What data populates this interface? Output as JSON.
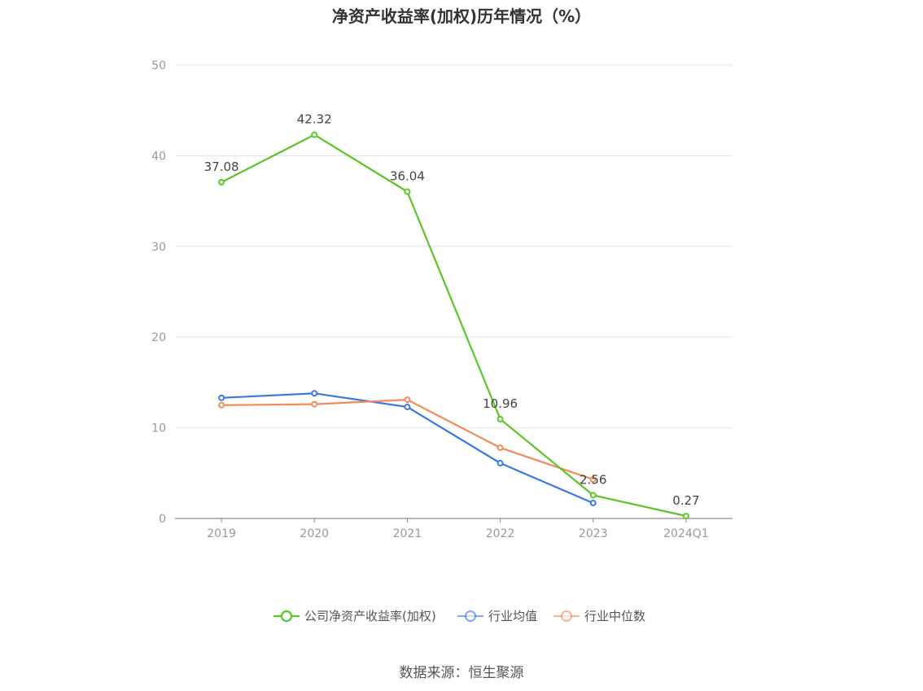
{
  "chart_data": {
    "type": "line",
    "title": "净资产收益率(加权)历年情况（%）",
    "categories": [
      "2019",
      "2020",
      "2021",
      "2022",
      "2023",
      "2024Q1"
    ],
    "ylim": [
      0,
      50
    ],
    "yticks": [
      0,
      10,
      20,
      30,
      40,
      50
    ],
    "grid": true,
    "legend_position": "bottom",
    "series": [
      {
        "name": "公司净资产收益率(加权)",
        "color": "#5ac626",
        "values": [
          37.08,
          42.32,
          36.04,
          10.96,
          2.56,
          0.27
        ],
        "labels": [
          "37.08",
          "42.32",
          "36.04",
          "10.96",
          "2.56",
          "0.27"
        ]
      },
      {
        "name": "行业均值",
        "color": "#3b78e0",
        "values": [
          13.3,
          13.8,
          12.3,
          6.1,
          1.7,
          null
        ]
      },
      {
        "name": "行业中位数",
        "color": "#f28b5a",
        "values": [
          12.5,
          12.6,
          13.1,
          7.8,
          4.3,
          null
        ]
      }
    ]
  },
  "source": "数据来源：恒生聚源"
}
